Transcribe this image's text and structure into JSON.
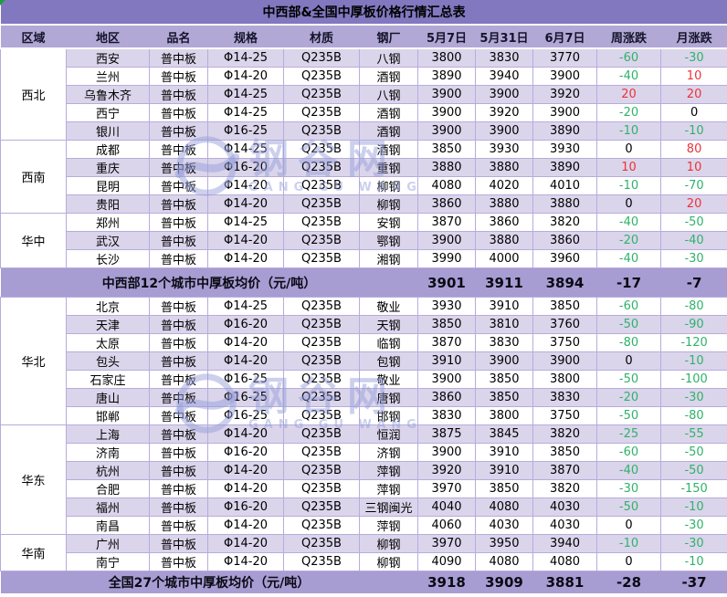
{
  "table": {
    "title": "中西部&全国中厚板价格行情汇总表",
    "columns": [
      "区域",
      "地区",
      "品名",
      "规格",
      "材质",
      "钢厂",
      "5月7日",
      "5月31日",
      "6月7日",
      "周涨跌",
      "月涨跌"
    ],
    "sections": [
      {
        "region": "西北",
        "rows": [
          [
            "西安",
            "普中板",
            "Φ14-25",
            "Q235B",
            "八钢",
            "3800",
            "3830",
            "3770",
            "-60",
            "-30"
          ],
          [
            "兰州",
            "普中板",
            "Φ14-20",
            "Q235B",
            "酒钢",
            "3890",
            "3940",
            "3900",
            "-40",
            "10"
          ],
          [
            "乌鲁木齐",
            "普中板",
            "Φ14-25",
            "Q235B",
            "八钢",
            "3900",
            "3900",
            "3920",
            "20",
            "20"
          ],
          [
            "西宁",
            "普中板",
            "Φ14-25",
            "Q235B",
            "酒钢",
            "3900",
            "3920",
            "3900",
            "-20",
            "0"
          ],
          [
            "银川",
            "普中板",
            "Φ16-25",
            "Q235B",
            "酒钢",
            "3900",
            "3900",
            "3890",
            "-10",
            "-10"
          ]
        ]
      },
      {
        "region": "西南",
        "rows": [
          [
            "成都",
            "普中板",
            "Φ14-25",
            "Q235B",
            "酒钢",
            "3850",
            "3930",
            "3930",
            "0",
            "80"
          ],
          [
            "重庆",
            "普中板",
            "Φ16-20",
            "Q235B",
            "重钢",
            "3880",
            "3880",
            "3890",
            "10",
            "10"
          ],
          [
            "昆明",
            "普中板",
            "Φ14-20",
            "Q235B",
            "柳钢",
            "4080",
            "4020",
            "4010",
            "-10",
            "-70"
          ],
          [
            "贵阳",
            "普中板",
            "Φ14-20",
            "Q235B",
            "柳钢",
            "3860",
            "3880",
            "3880",
            "0",
            "20"
          ]
        ]
      },
      {
        "region": "华中",
        "rows": [
          [
            "郑州",
            "普中板",
            "Φ14-25",
            "Q235B",
            "安钢",
            "3870",
            "3860",
            "3820",
            "-40",
            "-50"
          ],
          [
            "武汉",
            "普中板",
            "Φ14-20",
            "Q235B",
            "鄂钢",
            "3900",
            "3880",
            "3860",
            "-20",
            "-40"
          ],
          [
            "长沙",
            "普中板",
            "Φ14-20",
            "Q235B",
            "湘钢",
            "3990",
            "4000",
            "3960",
            "-40",
            "-30"
          ]
        ]
      },
      {
        "region": "华北",
        "rows": [
          [
            "北京",
            "普中板",
            "Φ14-25",
            "Q235B",
            "敬业",
            "3930",
            "3910",
            "3850",
            "-60",
            "-80"
          ],
          [
            "天津",
            "普中板",
            "Φ16-20",
            "Q235B",
            "天钢",
            "3850",
            "3810",
            "3760",
            "-50",
            "-90"
          ],
          [
            "太原",
            "普中板",
            "Φ14-20",
            "Q235B",
            "临钢",
            "3870",
            "3830",
            "3750",
            "-80",
            "-120"
          ],
          [
            "包头",
            "普中板",
            "Φ14-20",
            "Q235B",
            "包钢",
            "3910",
            "3900",
            "3900",
            "0",
            "-10"
          ],
          [
            "石家庄",
            "普中板",
            "Φ16-25",
            "Q235B",
            "敬业",
            "3900",
            "3850",
            "3800",
            "-50",
            "-100"
          ],
          [
            "唐山",
            "普中板",
            "Φ16-25",
            "Q235B",
            "唐钢",
            "3860",
            "3850",
            "3830",
            "-20",
            "-30"
          ],
          [
            "邯郸",
            "普中板",
            "Φ16-25",
            "Q235B",
            "邯钢",
            "3830",
            "3800",
            "3750",
            "-50",
            "-80"
          ]
        ]
      },
      {
        "region": "华东",
        "rows": [
          [
            "上海",
            "普中板",
            "Φ14-20",
            "Q235B",
            "恒润",
            "3875",
            "3845",
            "3820",
            "-25",
            "-55"
          ],
          [
            "济南",
            "普中板",
            "Φ16-20",
            "Q235B",
            "济钢",
            "3900",
            "3910",
            "3850",
            "-60",
            "-50"
          ],
          [
            "杭州",
            "普中板",
            "Φ14-20",
            "Q235B",
            "萍钢",
            "3920",
            "3910",
            "3870",
            "-40",
            "-50"
          ],
          [
            "合肥",
            "普中板",
            "Φ14-20",
            "Q235B",
            "萍钢",
            "3970",
            "3850",
            "3820",
            "-30",
            "-150"
          ],
          [
            "福州",
            "普中板",
            "Φ16-20",
            "Q235B",
            "三钢闽光",
            "4040",
            "4080",
            "4030",
            "-50",
            "-10"
          ],
          [
            "南昌",
            "普中板",
            "Φ14-20",
            "Q235B",
            "萍钢",
            "4060",
            "4030",
            "4030",
            "0",
            "-30"
          ]
        ]
      },
      {
        "region": "华南",
        "rows": [
          [
            "广州",
            "普中板",
            "Φ14-20",
            "Q235B",
            "柳钢",
            "3970",
            "3950",
            "3940",
            "-10",
            "-30"
          ],
          [
            "南宁",
            "普中板",
            "Φ14-20",
            "Q235B",
            "柳钢",
            "4090",
            "4080",
            "4080",
            "0",
            "-10"
          ]
        ]
      }
    ],
    "mid_summary": {
      "label": "中西部12个城市中厚板均价（元/吨）",
      "values": [
        "3901",
        "3911",
        "3894",
        "-17",
        "-7"
      ]
    },
    "national_summary": {
      "label": "全国27个城市中厚板均价（元/吨）",
      "values": [
        "3918",
        "3909",
        "3881",
        "-28",
        "-37"
      ]
    }
  },
  "watermark": {
    "text": "钢谷网",
    "subtext": "GANG GU WANG"
  },
  "colors": {
    "title_bg": "#8278C0",
    "header_bg": "#B2A8D6",
    "row_alt_bg": "#DBD5EB",
    "row_bg": "#FFFFFF",
    "summary_bg": "#A79DD3",
    "grid": "#B7ACDC",
    "up_red": "#ED3237",
    "down_green": "#2FB26A",
    "corner_flag_green": "#1E9E3E"
  }
}
